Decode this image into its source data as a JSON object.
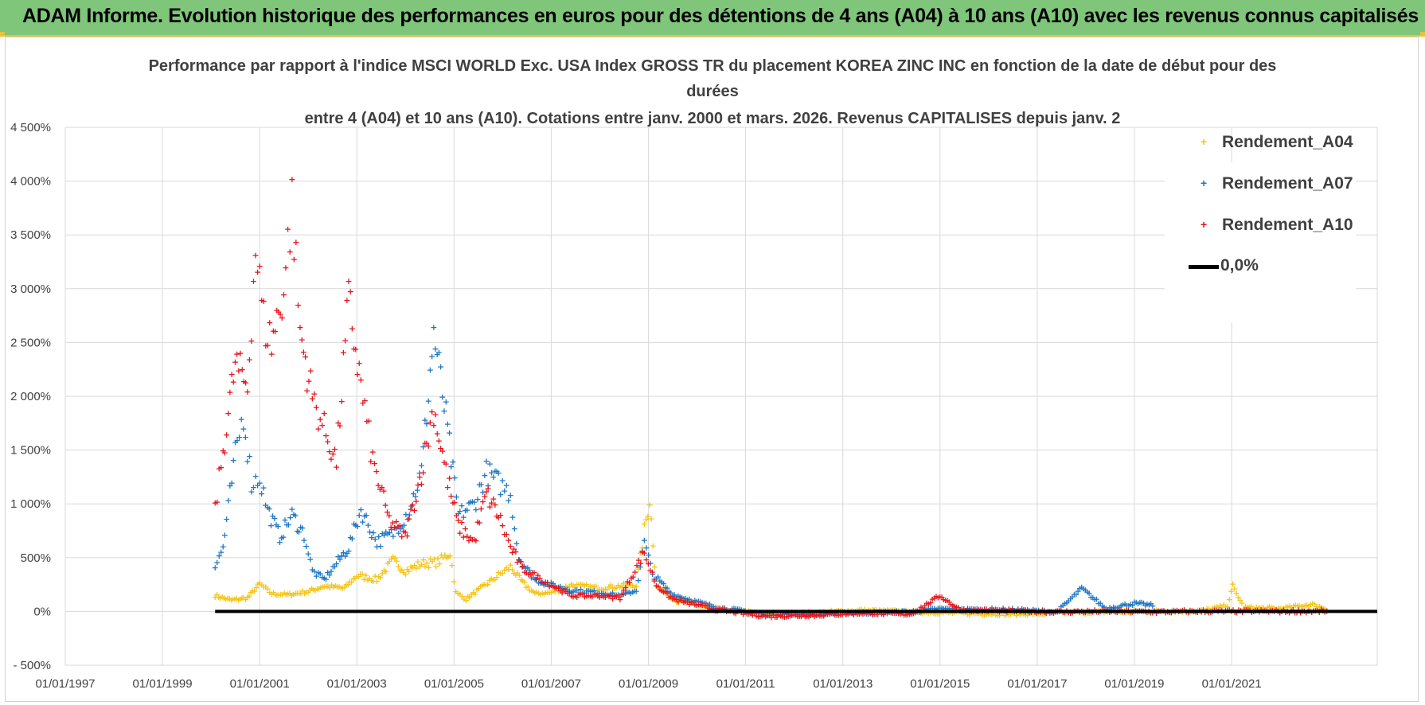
{
  "banner": {
    "title": "ADAM Informe. Evolution historique des performances en euros pour des détentions de 4 ans (A04) à 10 ans (A10) avec les revenus connus capitalisés"
  },
  "colors": {
    "banner_bg": "#7fc67a",
    "banner_border": "#e8c23a",
    "A04": "#f5c518",
    "A07": "#1f77c4",
    "A10": "#e8141c",
    "zero_line": "#000000"
  },
  "chart_data": {
    "type": "scatter",
    "title_lines": [
      "Performance par rapport à l'indice MSCI WORLD Exc. USA Index GROSS TR  du placement KOREA ZINC INC en fonction de la date de début pour des",
      "durées",
      "entre 4 (A04) et 10 ans (A10).  Cotations entre janv. 2000 et mars. 2026. Revenus CAPITALISES depuis janv. 2"
    ],
    "xlabel": "",
    "ylabel": "",
    "x_ticks": [
      "01/01/1997",
      "01/01/1999",
      "01/01/2001",
      "01/01/2003",
      "01/01/2005",
      "01/01/2007",
      "01/01/2009",
      "01/01/2011",
      "01/01/2013",
      "01/01/2015",
      "01/01/2017",
      "01/01/2019",
      "01/01/2021"
    ],
    "y_ticks": [
      "- 500%",
      "0%",
      "500%",
      "1 000%",
      "1 500%",
      "2 000%",
      "2 500%",
      "3 000%",
      "3 500%",
      "4 000%",
      "4 500%"
    ],
    "xlim": [
      "1997-01-01",
      "2023-12-31"
    ],
    "ylim": [
      -500,
      4500
    ],
    "grid": true,
    "legend_position": "top-right",
    "reference_line": {
      "name": "0,0%",
      "y": 0
    },
    "series": [
      {
        "name": "Rendement_A04",
        "key": "A04",
        "marker": "+",
        "x_range": [
          "2000-02-01",
          "2022-12-31"
        ],
        "points": [
          [
            "2000-02-01",
            150
          ],
          [
            "2000-06-01",
            110
          ],
          [
            "2000-10-01",
            130
          ],
          [
            "2001-01-01",
            260
          ],
          [
            "2001-04-01",
            170
          ],
          [
            "2001-08-01",
            160
          ],
          [
            "2002-01-01",
            190
          ],
          [
            "2002-05-01",
            240
          ],
          [
            "2002-10-01",
            220
          ],
          [
            "2003-01-01",
            340
          ],
          [
            "2003-06-01",
            300
          ],
          [
            "2003-10-01",
            480
          ],
          [
            "2004-01-01",
            380
          ],
          [
            "2004-05-01",
            450
          ],
          [
            "2004-09-01",
            460
          ],
          [
            "2004-12-01",
            550
          ],
          [
            "2005-01-15",
            180
          ],
          [
            "2005-04-01",
            120
          ],
          [
            "2005-08-01",
            230
          ],
          [
            "2005-12-01",
            340
          ],
          [
            "2006-03-01",
            420
          ],
          [
            "2006-06-01",
            270
          ],
          [
            "2006-09-01",
            170
          ],
          [
            "2007-01-01",
            180
          ],
          [
            "2007-06-01",
            250
          ],
          [
            "2008-01-01",
            220
          ],
          [
            "2008-06-01",
            240
          ],
          [
            "2008-10-01",
            250
          ],
          [
            "2008-12-01",
            760
          ],
          [
            "2009-01-10",
            1050
          ],
          [
            "2009-03-01",
            250
          ],
          [
            "2009-08-01",
            100
          ],
          [
            "2010-06-01",
            30
          ],
          [
            "2011-06-01",
            -20
          ],
          [
            "2012-06-01",
            -10
          ],
          [
            "2013-06-01",
            15
          ],
          [
            "2014-06-01",
            0
          ],
          [
            "2015-06-01",
            -10
          ],
          [
            "2016-06-01",
            -20
          ],
          [
            "2017-06-01",
            -10
          ],
          [
            "2018-06-01",
            0
          ],
          [
            "2019-06-01",
            5
          ],
          [
            "2020-06-01",
            10
          ],
          [
            "2020-12-01",
            60
          ],
          [
            "2021-01-10",
            240
          ],
          [
            "2021-04-01",
            40
          ],
          [
            "2022-01-01",
            30
          ],
          [
            "2022-09-01",
            70
          ],
          [
            "2022-12-31",
            20
          ]
        ]
      },
      {
        "name": "Rendement_A07",
        "key": "A07",
        "marker": "+",
        "x_range": [
          "2000-02-01",
          "2019-06-01"
        ],
        "points": [
          [
            "2000-02-01",
            420
          ],
          [
            "2000-04-01",
            600
          ],
          [
            "2000-07-01",
            1450
          ],
          [
            "2000-09-01",
            1850
          ],
          [
            "2000-11-01",
            1200
          ],
          [
            "2001-01-01",
            1250
          ],
          [
            "2001-03-01",
            950
          ],
          [
            "2001-06-01",
            700
          ],
          [
            "2001-09-01",
            900
          ],
          [
            "2001-12-01",
            720
          ],
          [
            "2002-02-01",
            380
          ],
          [
            "2002-05-01",
            300
          ],
          [
            "2002-08-01",
            450
          ],
          [
            "2002-11-01",
            600
          ],
          [
            "2003-02-01",
            950
          ],
          [
            "2003-06-01",
            650
          ],
          [
            "2003-10-01",
            730
          ],
          [
            "2004-02-01",
            950
          ],
          [
            "2004-05-01",
            1300
          ],
          [
            "2004-08-01",
            2600
          ],
          [
            "2004-11-01",
            1800
          ],
          [
            "2005-02-01",
            900
          ],
          [
            "2005-06-01",
            1000
          ],
          [
            "2005-09-01",
            1300
          ],
          [
            "2005-12-01",
            1200
          ],
          [
            "2006-03-01",
            1100
          ],
          [
            "2006-05-01",
            500
          ],
          [
            "2006-09-01",
            300
          ],
          [
            "2007-01-01",
            250
          ],
          [
            "2007-06-01",
            200
          ],
          [
            "2008-01-01",
            180
          ],
          [
            "2008-06-01",
            150
          ],
          [
            "2008-10-01",
            200
          ],
          [
            "2008-12-01",
            650
          ],
          [
            "2009-02-01",
            350
          ],
          [
            "2009-07-01",
            160
          ],
          [
            "2010-06-01",
            40
          ],
          [
            "2011-06-01",
            -20
          ],
          [
            "2012-06-01",
            -20
          ],
          [
            "2013-06-01",
            -10
          ],
          [
            "2014-06-01",
            0
          ],
          [
            "2015-01-01",
            30
          ],
          [
            "2015-06-01",
            20
          ],
          [
            "2016-06-01",
            20
          ],
          [
            "2017-06-01",
            0
          ],
          [
            "2017-12-01",
            220
          ],
          [
            "2018-06-01",
            30
          ],
          [
            "2019-01-01",
            80
          ],
          [
            "2019-06-01",
            60
          ]
        ]
      },
      {
        "name": "Rendement_A10",
        "key": "A10",
        "marker": "+",
        "x_range": [
          "2000-02-01",
          "2022-12-31"
        ],
        "points": [
          [
            "2000-02-01",
            950
          ],
          [
            "2000-04-01",
            1500
          ],
          [
            "2000-07-01",
            2300
          ],
          [
            "2000-10-01",
            2100
          ],
          [
            "2000-12-01",
            3400
          ],
          [
            "2001-02-01",
            2700
          ],
          [
            "2001-04-01",
            2500
          ],
          [
            "2001-07-01",
            3000
          ],
          [
            "2001-09-01",
            3800
          ],
          [
            "2001-11-01",
            2600
          ],
          [
            "2002-02-01",
            2000
          ],
          [
            "2002-05-01",
            1700
          ],
          [
            "2002-08-01",
            1400
          ],
          [
            "2002-11-01",
            2900
          ],
          [
            "2003-02-01",
            2100
          ],
          [
            "2003-05-01",
            1400
          ],
          [
            "2003-09-01",
            850
          ],
          [
            "2004-01-01",
            700
          ],
          [
            "2004-05-01",
            1300
          ],
          [
            "2004-08-01",
            1900
          ],
          [
            "2004-11-01",
            1300
          ],
          [
            "2005-02-01",
            800
          ],
          [
            "2005-06-01",
            650
          ],
          [
            "2005-09-01",
            1100
          ],
          [
            "2005-12-01",
            900
          ],
          [
            "2006-03-01",
            600
          ],
          [
            "2006-06-01",
            400
          ],
          [
            "2007-01-01",
            250
          ],
          [
            "2007-06-01",
            150
          ],
          [
            "2008-01-01",
            150
          ],
          [
            "2008-06-01",
            130
          ],
          [
            "2008-12-01",
            550
          ],
          [
            "2009-03-01",
            250
          ],
          [
            "2009-07-01",
            120
          ],
          [
            "2010-06-01",
            20
          ],
          [
            "2011-06-01",
            -40
          ],
          [
            "2012-06-01",
            -30
          ],
          [
            "2013-06-01",
            -10
          ],
          [
            "2014-06-01",
            -20
          ],
          [
            "2015-01-01",
            150
          ],
          [
            "2015-06-01",
            20
          ],
          [
            "2016-06-01",
            10
          ],
          [
            "2017-06-01",
            0
          ],
          [
            "2018-06-01",
            5
          ],
          [
            "2019-06-01",
            0
          ],
          [
            "2020-06-01",
            5
          ],
          [
            "2021-06-01",
            5
          ],
          [
            "2022-12-31",
            5
          ]
        ]
      }
    ]
  }
}
